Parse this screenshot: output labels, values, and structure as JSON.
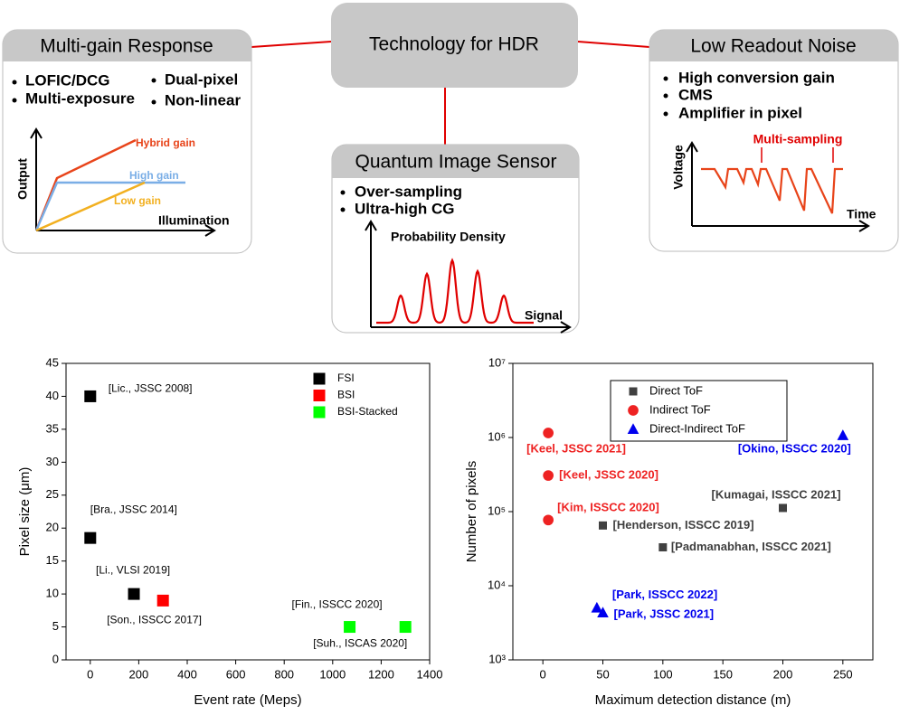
{
  "diagram": {
    "center": "Technology for HDR",
    "left": {
      "title": "Multi-gain Response",
      "bullets": [
        "LOFIC/DCG",
        "Multi-exposure",
        "Dual-pixel",
        "Non-linear"
      ],
      "x_label": "Illumination",
      "y_label": "Output",
      "curves": [
        "Hybrid gain",
        "High gain",
        "Low gain"
      ]
    },
    "right": {
      "title": "Low Readout Noise",
      "bullets": [
        "High conversion gain",
        "CMS",
        "Amplifier in pixel"
      ],
      "annotation": "Multi-sampling",
      "x_label": "Time",
      "y_label": "Voltage"
    },
    "bottom": {
      "title": "Quantum Image Sensor",
      "bullets": [
        "Over-sampling",
        "Ultra-high CG"
      ],
      "x_label": "Signal",
      "y_label": "Probability Density"
    }
  },
  "chart_data": [
    {
      "type": "scatter",
      "x_label": "Event rate (Meps)",
      "y_label": "Pixel size (μm)",
      "xlim": [
        -100,
        1400
      ],
      "ylim": [
        0,
        45
      ],
      "xticks": [
        0,
        200,
        400,
        600,
        800,
        1000,
        1200,
        1400
      ],
      "yticks": [
        0,
        5,
        10,
        15,
        20,
        25,
        30,
        35,
        40,
        45
      ],
      "log_y": false,
      "series": [
        {
          "name": "FSI",
          "color": "#000000",
          "marker": "square",
          "x": [
            0,
            0,
            180
          ],
          "values": [
            40,
            18.5,
            10
          ],
          "labels": [
            "[Lic., JSSC 2008]",
            "[Bra., JSSC 2014]",
            "[Li., VLSI 2019]"
          ]
        },
        {
          "name": "BSI",
          "color": "#ff0000",
          "marker": "square",
          "x": [
            300
          ],
          "values": [
            9
          ],
          "labels": [
            "[Son., ISSCC 2017]"
          ]
        },
        {
          "name": "BSI-Stacked",
          "color": "#00ff00",
          "marker": "square",
          "x": [
            1070,
            1300
          ],
          "values": [
            5,
            5
          ],
          "labels": [
            "[Fin., ISSCC 2020]",
            "[Suh., ISCAS 2020]"
          ]
        }
      ]
    },
    {
      "type": "scatter",
      "x_label": "Maximum detection distance (m)",
      "y_label": "Number of pixels",
      "xlim": [
        -25,
        275
      ],
      "ylim": [
        1000,
        10000000
      ],
      "xticks": [
        0,
        50,
        100,
        150,
        200,
        250
      ],
      "yticks": [
        {
          "value": 1000,
          "label": "10³"
        },
        {
          "value": 10000,
          "label": "10⁴"
        },
        {
          "value": 100000,
          "label": "10⁵"
        },
        {
          "value": 1000000,
          "label": "10⁶"
        },
        {
          "value": 10000000,
          "label": "10⁷"
        }
      ],
      "log_y": true,
      "series": [
        {
          "name": "Direct ToF",
          "color": "#404040",
          "marker": "square",
          "x": [
            50,
            100,
            200
          ],
          "values": [
            65000,
            33000,
            112000
          ],
          "labels": [
            "[Henderson, ISSCC 2019]",
            "[Padmanabhan, ISSCC 2021]",
            "[Kumagai, ISSCC 2021]"
          ]
        },
        {
          "name": "Indirect ToF",
          "color": "#ee2222",
          "marker": "circle",
          "x": [
            4.5,
            4.5,
            4.5
          ],
          "values": [
            1150000,
            307000,
            77000
          ],
          "labels": [
            "[Keel, JSSC 2021]",
            "[Keel, JSSC 2020]",
            "[Kim, ISSCC 2020]"
          ]
        },
        {
          "name": "Direct-Indirect ToF",
          "color": "#0000ee",
          "marker": "triangle",
          "x": [
            250,
            45,
            50
          ],
          "values": [
            1060000,
            5000,
            4300
          ],
          "labels": [
            "[Okino, ISSCC 2020]",
            "[Park, ISSCC 2022]",
            "[Park, JSSC 2021]"
          ]
        }
      ]
    }
  ]
}
